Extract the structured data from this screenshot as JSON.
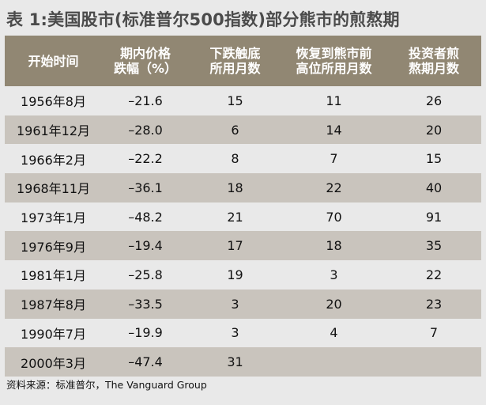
{
  "title": "表 1:美国股市(标准普尔500指数)部分熊市的煎熬期",
  "columns": [
    {
      "line1": "开始时间",
      "line2": ""
    },
    {
      "line1": "期内价格",
      "line2": "跌幅（%）"
    },
    {
      "line1": "下跌触底",
      "line2": "所用月数"
    },
    {
      "line1": "恢复到熊市前",
      "line2": "高位所用月数"
    },
    {
      "line1": "投资者煎",
      "line2": "熬期月数"
    }
  ],
  "rows": [
    [
      "1956年8月",
      "–21.6",
      "15",
      "11",
      "26"
    ],
    [
      "1961年12月",
      "–28.0",
      "6",
      "14",
      "20"
    ],
    [
      "1966年2月",
      "–22.2",
      "8",
      "7",
      "15"
    ],
    [
      "1968年11月",
      "–36.1",
      "18",
      "22",
      "40"
    ],
    [
      "1973年1月",
      "–48.2",
      "21",
      "70",
      "91"
    ],
    [
      "1976年9月",
      "–19.4",
      "17",
      "18",
      "35"
    ],
    [
      "1981年1月",
      "–25.8",
      "19",
      "3",
      "22"
    ],
    [
      "1987年8月",
      "–33.5",
      "3",
      "20",
      "23"
    ],
    [
      "1990年7月",
      "–19.9",
      "3",
      "4",
      "7"
    ],
    [
      "2000年3月",
      "–47.4",
      "31",
      "",
      ""
    ]
  ],
  "source": "资料来源：标准普尔，The Vanguard Group",
  "colors": {
    "header_bg": "#918773",
    "shade_row": "#c9c4bd",
    "light_row": "#e9e9e9",
    "title_text": "#4b4b4b"
  }
}
